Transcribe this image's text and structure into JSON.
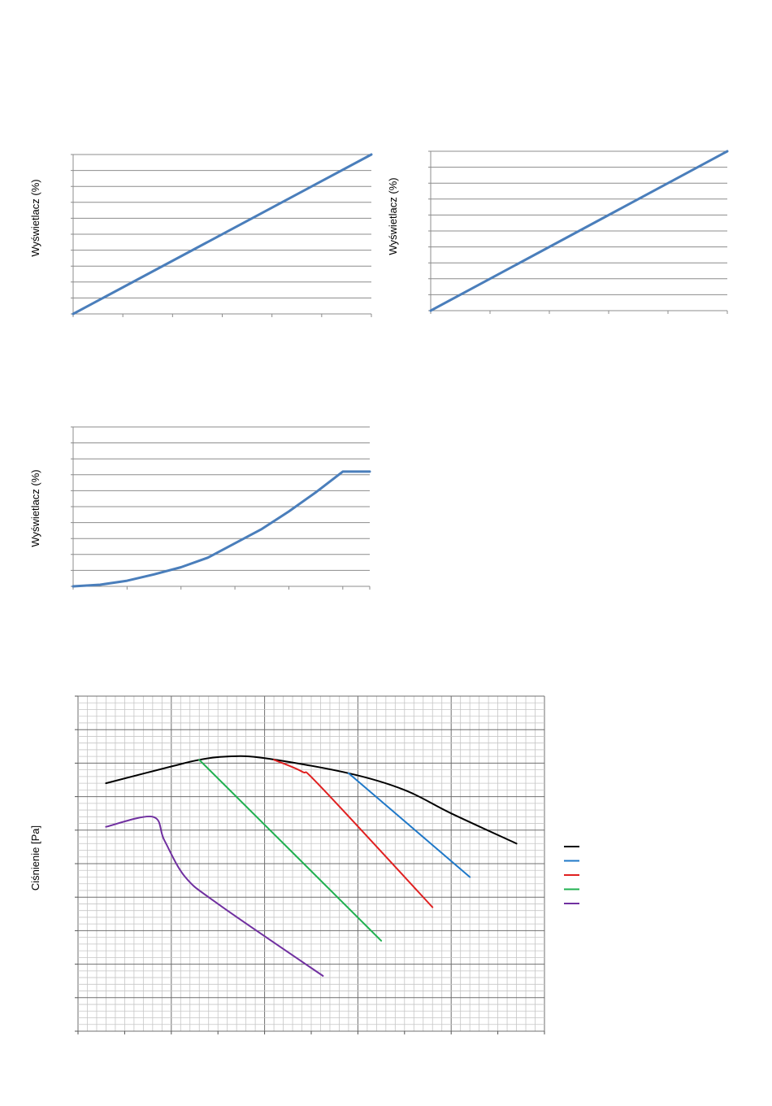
{
  "chart_data": [
    {
      "type": "line",
      "ylabel": "Wyświetlacz (%)",
      "xlim": [
        0,
        6
      ],
      "ylim": [
        0,
        10
      ],
      "grid": true,
      "series": [
        {
          "color": "#4a7ebb",
          "x": [
            0,
            6
          ],
          "y": [
            0,
            10
          ]
        }
      ]
    },
    {
      "type": "line",
      "ylabel": "Wyświetlacz (%)",
      "xlim": [
        0,
        5
      ],
      "ylim": [
        0,
        10
      ],
      "grid": true,
      "series": [
        {
          "color": "#4a7ebb",
          "x": [
            0,
            5
          ],
          "y": [
            0,
            10
          ]
        }
      ]
    },
    {
      "type": "line",
      "ylabel": "Wyświetlacz (%)",
      "xlim": [
        0,
        5.5
      ],
      "ylim": [
        0,
        10
      ],
      "grid": true,
      "series": [
        {
          "color": "#4a7ebb",
          "x": [
            0,
            0.5,
            1,
            1.5,
            2,
            2.5,
            3,
            3.5,
            4,
            4.5,
            5,
            5.5
          ],
          "y": [
            0,
            0.1,
            0.35,
            0.75,
            1.2,
            1.8,
            2.7,
            3.6,
            4.7,
            5.9,
            7.2,
            7.2
          ]
        }
      ]
    },
    {
      "type": "line",
      "ylabel": "Ciśnienie [Pa]",
      "xlim": [
        0,
        10
      ],
      "ylim": [
        0,
        10
      ],
      "grid": true,
      "legend": "right",
      "series": [
        {
          "color": "#000000",
          "x": [
            0.6,
            2,
            2.6,
            3.2,
            4,
            5.8,
            7,
            8,
            9.4
          ],
          "y": [
            7.4,
            7.9,
            8.1,
            8.2,
            8.15,
            7.7,
            7.2,
            6.5,
            5.6
          ]
        },
        {
          "color": "#1f78c8",
          "x": [
            5.8,
            8.4
          ],
          "y": [
            7.7,
            4.6
          ]
        },
        {
          "color": "#e02020",
          "x": [
            4.2,
            4.8,
            5.2,
            7.6
          ],
          "y": [
            8.1,
            7.75,
            7.3,
            3.7
          ]
        },
        {
          "color": "#20b050",
          "x": [
            2.6,
            6.5
          ],
          "y": [
            8.1,
            2.7
          ]
        },
        {
          "color": "#7030a0",
          "x": [
            0.6,
            1.6,
            1.85,
            2.3,
            3,
            5.25
          ],
          "y": [
            6.1,
            6.4,
            5.7,
            4.6,
            3.8,
            1.65
          ]
        }
      ]
    }
  ]
}
